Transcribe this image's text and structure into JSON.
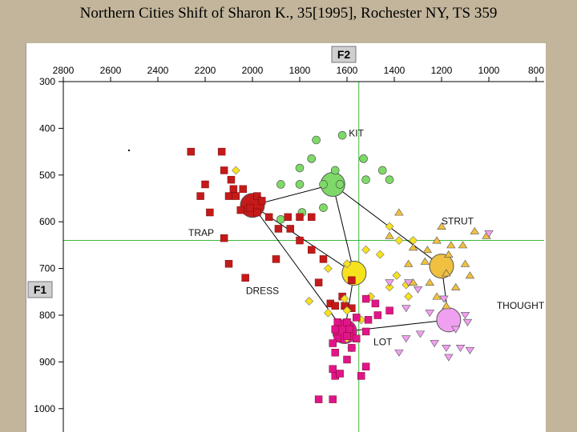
{
  "title": "Northern Cities Shift of Sharon K., 35[1995], Rochester NY, TS 359",
  "chart_data": {
    "type": "scatter",
    "xlabel": "F2",
    "ylabel": "F1",
    "xlim": [
      2800,
      800
    ],
    "ylim": [
      300,
      1000
    ],
    "x_ticks": [
      2800,
      2600,
      2400,
      2200,
      2000,
      1800,
      1600,
      1400,
      1200,
      1000,
      800
    ],
    "y_ticks": [
      300,
      400,
      500,
      600,
      700,
      800,
      900,
      1000
    ],
    "crosshair": {
      "x": 1550,
      "y": 640
    },
    "series": [
      {
        "name": "KIT",
        "marker": "circle",
        "color": "#7fd968",
        "mean": {
          "x": 1660,
          "y": 520
        },
        "points": [
          [
            1730,
            425
          ],
          [
            1620,
            415
          ],
          [
            1530,
            465
          ],
          [
            1750,
            465
          ],
          [
            1800,
            485
          ],
          [
            1650,
            490
          ],
          [
            1450,
            490
          ],
          [
            1520,
            510
          ],
          [
            1420,
            510
          ],
          [
            1800,
            520
          ],
          [
            1700,
            520
          ],
          [
            1880,
            520
          ],
          [
            1630,
            520
          ],
          [
            1700,
            570
          ],
          [
            1790,
            580
          ],
          [
            1880,
            595
          ]
        ]
      },
      {
        "name": "TRAP",
        "marker": "square",
        "color": "#c41a1a",
        "mean": {
          "x": 2000,
          "y": 565
        },
        "points": [
          [
            2260,
            450
          ],
          [
            2130,
            450
          ],
          [
            2120,
            490
          ],
          [
            2090,
            510
          ],
          [
            2200,
            520
          ],
          [
            2080,
            530
          ],
          [
            2040,
            530
          ],
          [
            2100,
            545
          ],
          [
            1980,
            545
          ],
          [
            2220,
            545
          ],
          [
            2070,
            545
          ],
          [
            1960,
            555
          ],
          [
            2010,
            570
          ],
          [
            2050,
            575
          ],
          [
            2180,
            580
          ],
          [
            1980,
            580
          ],
          [
            1930,
            590
          ],
          [
            1850,
            590
          ],
          [
            1800,
            590
          ],
          [
            1750,
            590
          ],
          [
            1890,
            615
          ],
          [
            1840,
            615
          ],
          [
            1800,
            640
          ],
          [
            1750,
            660
          ],
          [
            1900,
            680
          ],
          [
            1700,
            680
          ],
          [
            2100,
            690
          ],
          [
            2120,
            635
          ],
          [
            1720,
            730
          ],
          [
            1580,
            725
          ],
          [
            1670,
            775
          ],
          [
            1580,
            785
          ],
          [
            1650,
            780
          ],
          [
            1610,
            780
          ],
          [
            1620,
            760
          ],
          [
            2030,
            720
          ]
        ]
      },
      {
        "name": "DRESS",
        "marker": "circle",
        "color": "#f7e21e",
        "mean": {
          "x": 1570,
          "y": 710
        },
        "points": [
          [
            2070,
            490
          ],
          [
            1420,
            610
          ],
          [
            1380,
            640
          ],
          [
            1320,
            640
          ],
          [
            1520,
            660
          ],
          [
            1460,
            670
          ],
          [
            1600,
            690
          ],
          [
            1680,
            700
          ],
          [
            1390,
            715
          ],
          [
            1350,
            735
          ],
          [
            1420,
            740
          ],
          [
            1340,
            760
          ],
          [
            1500,
            760
          ],
          [
            1610,
            765
          ],
          [
            1760,
            770
          ],
          [
            1600,
            790
          ],
          [
            1680,
            795
          ],
          [
            1540,
            810
          ],
          [
            1600,
            850
          ],
          [
            1580,
            870
          ]
        ]
      },
      {
        "name": "STRUT",
        "marker": "triangle-up",
        "color": "#f0c040",
        "mean": {
          "x": 1200,
          "y": 695
        },
        "points": [
          [
            1380,
            580
          ],
          [
            1200,
            610
          ],
          [
            1060,
            620
          ],
          [
            1420,
            630
          ],
          [
            1010,
            630
          ],
          [
            1220,
            640
          ],
          [
            1160,
            650
          ],
          [
            1110,
            650
          ],
          [
            1320,
            655
          ],
          [
            1260,
            660
          ],
          [
            1170,
            670
          ],
          [
            1270,
            685
          ],
          [
            1100,
            690
          ],
          [
            1340,
            690
          ],
          [
            1180,
            710
          ],
          [
            1080,
            715
          ],
          [
            1250,
            730
          ],
          [
            1320,
            730
          ],
          [
            1140,
            740
          ],
          [
            1220,
            760
          ],
          [
            1180,
            780
          ]
        ]
      },
      {
        "name": "THOUGHT",
        "marker": "triangle-down",
        "color": "#f0a0f0",
        "mean": {
          "x": 1170,
          "y": 810
        },
        "points": [
          [
            1000,
            625
          ],
          [
            1340,
            730
          ],
          [
            1420,
            730
          ],
          [
            1300,
            745
          ],
          [
            1190,
            765
          ],
          [
            1350,
            785
          ],
          [
            1250,
            795
          ],
          [
            1100,
            800
          ],
          [
            1090,
            815
          ],
          [
            1140,
            830
          ],
          [
            1290,
            840
          ],
          [
            1350,
            850
          ],
          [
            1230,
            860
          ],
          [
            1180,
            870
          ],
          [
            1120,
            870
          ],
          [
            1080,
            875
          ],
          [
            1170,
            890
          ],
          [
            1380,
            880
          ]
        ]
      },
      {
        "name": "LOT",
        "marker": "square",
        "color": "#e0158a",
        "mean": {
          "x": 1610,
          "y": 835
        },
        "points": [
          [
            1520,
            765
          ],
          [
            1480,
            775
          ],
          [
            1420,
            790
          ],
          [
            1470,
            800
          ],
          [
            1560,
            805
          ],
          [
            1600,
            815
          ],
          [
            1640,
            815
          ],
          [
            1510,
            810
          ],
          [
            1650,
            830
          ],
          [
            1590,
            830
          ],
          [
            1520,
            835
          ],
          [
            1600,
            845
          ],
          [
            1640,
            850
          ],
          [
            1560,
            850
          ],
          [
            1660,
            860
          ],
          [
            1580,
            870
          ],
          [
            1600,
            895
          ],
          [
            1520,
            910
          ],
          [
            1660,
            915
          ],
          [
            1650,
            930
          ],
          [
            1630,
            925
          ],
          [
            1540,
            930
          ],
          [
            1720,
            980
          ],
          [
            1660,
            980
          ],
          [
            1650,
            880
          ]
        ]
      }
    ]
  }
}
